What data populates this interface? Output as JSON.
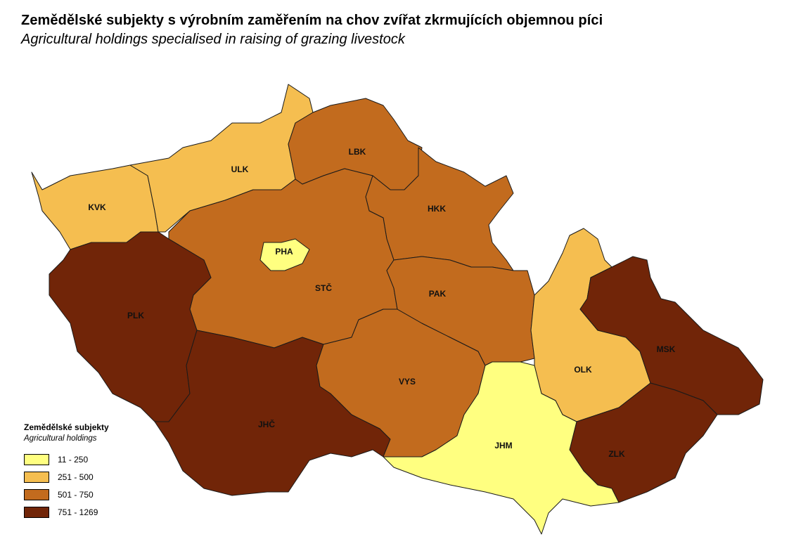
{
  "title": "Zemědělské subjekty s výrobním zaměřením na chov zvířat zkrmujících objemnou píci",
  "subtitle": "Agricultural holdings specialised in raising of grazing livestock",
  "legend": {
    "title": "Zemědělské subjekty",
    "subtitle": "Agricultural holdings",
    "classes": [
      {
        "label": "11 - 250",
        "color": "#FFFF80"
      },
      {
        "label": "251 - 500",
        "color": "#F5BE50"
      },
      {
        "label": "501 - 750",
        "color": "#C26B1E"
      },
      {
        "label": "751 - 1269",
        "color": "#712508"
      }
    ]
  },
  "regions": [
    {
      "code": "KVK",
      "class": 1
    },
    {
      "code": "ULK",
      "class": 1
    },
    {
      "code": "LBK",
      "class": 2
    },
    {
      "code": "HKK",
      "class": 2
    },
    {
      "code": "STČ",
      "class": 2
    },
    {
      "code": "PHA",
      "class": 0
    },
    {
      "code": "PLK",
      "class": 3
    },
    {
      "code": "JHČ",
      "class": 3
    },
    {
      "code": "VYS",
      "class": 2
    },
    {
      "code": "PAK",
      "class": 2
    },
    {
      "code": "OLK",
      "class": 1
    },
    {
      "code": "MSK",
      "class": 3
    },
    {
      "code": "ZLK",
      "class": 3
    },
    {
      "code": "JHM",
      "class": 0
    }
  ]
}
